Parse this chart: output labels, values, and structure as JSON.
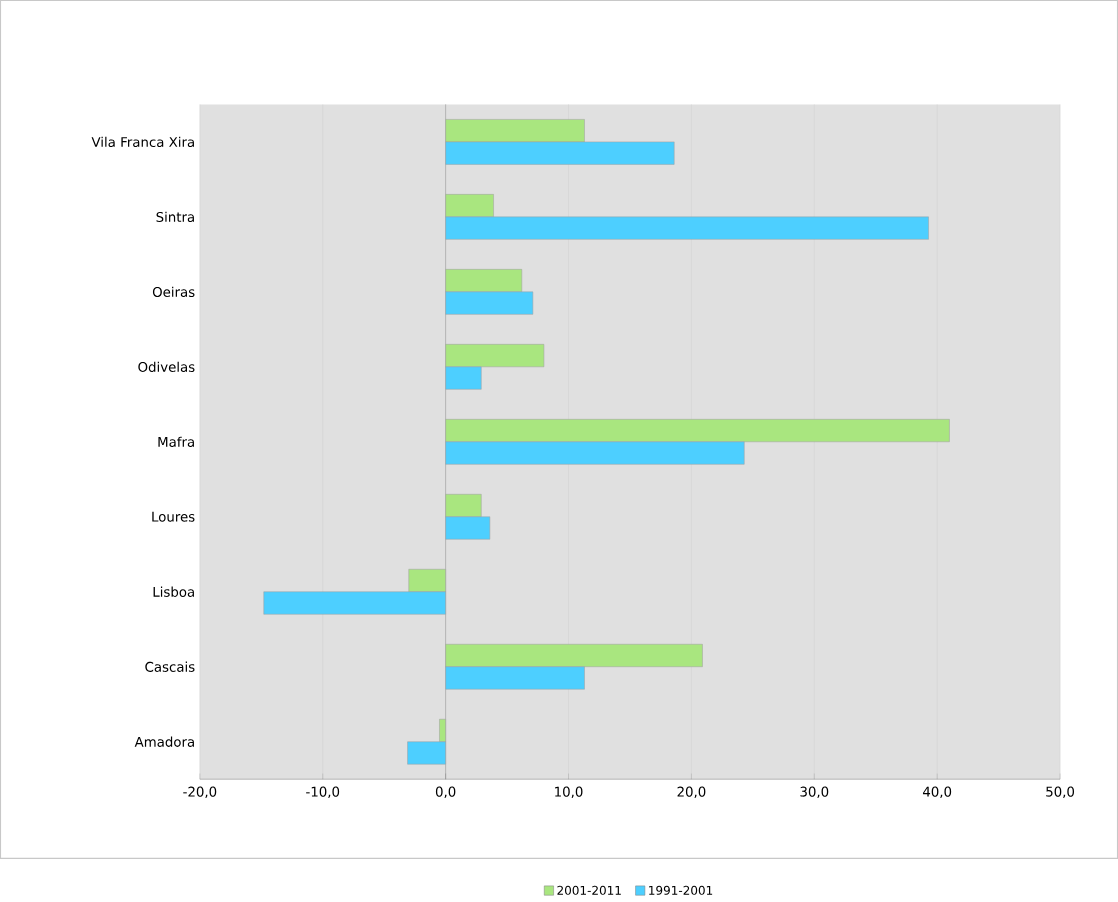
{
  "chart_data": {
    "type": "bar",
    "orientation": "horizontal",
    "categories": [
      "Vila Franca Xira",
      "Sintra",
      "Oeiras",
      "Odivelas",
      "Mafra",
      "Loures",
      "Lisboa",
      "Cascais",
      "Amadora"
    ],
    "series": [
      {
        "name": "2001-2011",
        "color": "#a9e67f",
        "values": [
          11.3,
          3.9,
          6.2,
          8.0,
          41.0,
          2.9,
          -3.0,
          20.9,
          -0.5
        ]
      },
      {
        "name": "1991-2001",
        "color": "#4dcfff",
        "values": [
          18.6,
          39.3,
          7.1,
          2.9,
          24.3,
          3.6,
          -14.8,
          11.3,
          -3.1
        ]
      }
    ],
    "xlim": [
      -20,
      50
    ],
    "xticks": [
      {
        "value": -20,
        "label": "-20,0"
      },
      {
        "value": -10,
        "label": "-10,0"
      },
      {
        "value": 0,
        "label": "0,0"
      },
      {
        "value": 10,
        "label": "10,0"
      },
      {
        "value": 20,
        "label": "20,0"
      },
      {
        "value": 30,
        "label": "30,0"
      },
      {
        "value": 40,
        "label": "40,0"
      },
      {
        "value": 50,
        "label": "50,0"
      }
    ],
    "grid": "x",
    "legend": "bottom"
  }
}
